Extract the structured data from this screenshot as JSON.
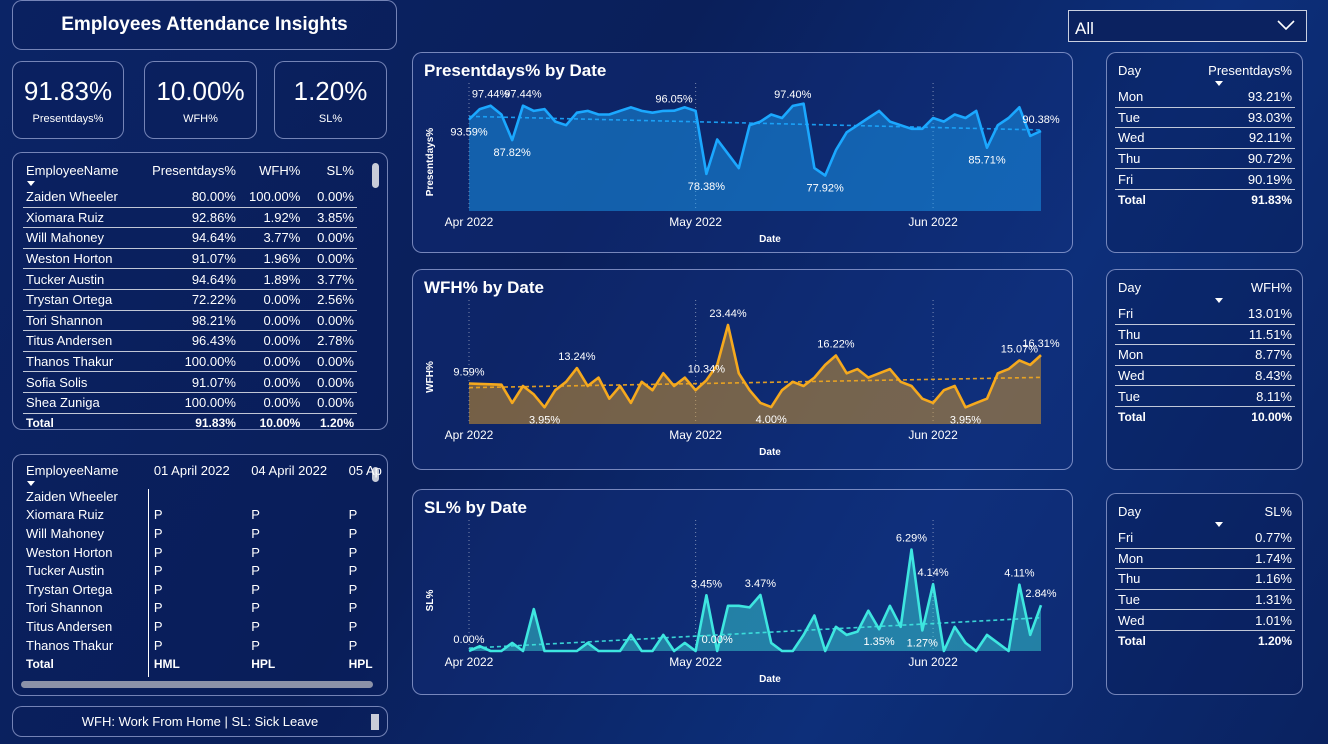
{
  "header": {
    "title": "Employees Attendance Insights"
  },
  "slicer": {
    "value": "All"
  },
  "kpis": [
    {
      "value": "91.83%",
      "label": "Presentdays%"
    },
    {
      "value": "10.00%",
      "label": "WFH%"
    },
    {
      "value": "1.20%",
      "label": "SL%"
    }
  ],
  "employee_table": {
    "columns": [
      "EmployeeName",
      "Presentdays%",
      "WFH%",
      "SL%"
    ],
    "rows": [
      [
        "Zaiden Wheeler",
        "80.00%",
        "100.00%",
        "0.00%"
      ],
      [
        "Xiomara Ruiz",
        "92.86%",
        "1.92%",
        "3.85%"
      ],
      [
        "Will Mahoney",
        "94.64%",
        "3.77%",
        "0.00%"
      ],
      [
        "Weston Horton",
        "91.07%",
        "1.96%",
        "0.00%"
      ],
      [
        "Tucker Austin",
        "94.64%",
        "1.89%",
        "3.77%"
      ],
      [
        "Trystan Ortega",
        "72.22%",
        "0.00%",
        "2.56%"
      ],
      [
        "Tori Shannon",
        "98.21%",
        "0.00%",
        "0.00%"
      ],
      [
        "Titus Andersen",
        "96.43%",
        "0.00%",
        "2.78%"
      ],
      [
        "Thanos Thakur",
        "100.00%",
        "0.00%",
        "0.00%"
      ],
      [
        "Sofia Solis",
        "91.07%",
        "0.00%",
        "0.00%"
      ],
      [
        "Shea Zuniga",
        "100.00%",
        "0.00%",
        "0.00%"
      ]
    ],
    "total": [
      "Total",
      "91.83%",
      "10.00%",
      "1.20%"
    ]
  },
  "attendance_matrix": {
    "columns": [
      "EmployeeName",
      "01 April 2022",
      "04 April 2022",
      "05 Ap"
    ],
    "rows": [
      [
        "Zaiden Wheeler"
      ],
      [
        "Xiomara Ruiz",
        "P",
        "P",
        "P"
      ],
      [
        "Will Mahoney",
        "P",
        "P",
        "P"
      ],
      [
        "Weston Horton",
        "P",
        "P",
        "P"
      ],
      [
        "Tucker Austin",
        "P",
        "P",
        "P"
      ],
      [
        "Trystan Ortega",
        "P",
        "P",
        "P"
      ],
      [
        "Tori Shannon",
        "P",
        "P",
        "P"
      ],
      [
        "Titus Andersen",
        "P",
        "P",
        "P"
      ],
      [
        "Thanos Thakur",
        "P",
        "P",
        "P"
      ]
    ],
    "total": [
      "Total",
      "HML",
      "HPL",
      "HPL"
    ]
  },
  "day_tables": [
    {
      "columns": [
        "Day",
        "Presentdays%"
      ],
      "rows": [
        [
          "Mon",
          "93.21%"
        ],
        [
          "Tue",
          "93.03%"
        ],
        [
          "Wed",
          "92.11%"
        ],
        [
          "Thu",
          "90.72%"
        ],
        [
          "Fri",
          "90.19%"
        ]
      ],
      "total": [
        "Total",
        "91.83%"
      ]
    },
    {
      "columns": [
        "Day",
        "WFH%"
      ],
      "rows": [
        [
          "Fri",
          "13.01%"
        ],
        [
          "Thu",
          "11.51%"
        ],
        [
          "Mon",
          "8.77%"
        ],
        [
          "Wed",
          "8.43%"
        ],
        [
          "Tue",
          "8.11%"
        ]
      ],
      "total": [
        "Total",
        "10.00%"
      ]
    },
    {
      "columns": [
        "Day",
        "SL%"
      ],
      "rows": [
        [
          "Fri",
          "0.77%"
        ],
        [
          "Mon",
          "1.74%"
        ],
        [
          "Thu",
          "1.16%"
        ],
        [
          "Tue",
          "1.31%"
        ],
        [
          "Wed",
          "1.01%"
        ]
      ],
      "total": [
        "Total",
        "1.20%"
      ]
    }
  ],
  "footnote": "WFH: Work From Home | SL: Sick Leave",
  "chart_data": [
    {
      "type": "area",
      "title": "Presentdays% by Date",
      "x_label": "Date",
      "y_label": "Presentdays%",
      "color": "#1ba8ff",
      "ylim": [
        68,
        101
      ],
      "trendline": true,
      "categories": [
        "Apr 2022",
        null,
        null,
        null,
        null,
        null,
        null,
        null,
        null,
        null,
        null,
        null,
        null,
        null,
        null,
        null,
        null,
        null,
        null,
        null,
        null,
        "May 2022",
        null,
        null,
        null,
        null,
        null,
        null,
        null,
        null,
        null,
        null,
        null,
        null,
        null,
        null,
        null,
        null,
        null,
        null,
        null,
        null,
        null,
        "Jun 2022",
        null,
        null,
        null,
        null,
        null,
        null,
        null,
        null,
        null,
        null
      ],
      "values": [
        93.59,
        96.5,
        97.44,
        95,
        87.82,
        97.44,
        96,
        96.5,
        93,
        92,
        95.5,
        96,
        95,
        95,
        96,
        97,
        96,
        95.5,
        96,
        96.05,
        97,
        96,
        78.38,
        88,
        84,
        80,
        92,
        93,
        95,
        94,
        97.4,
        98,
        80,
        77.92,
        85,
        90,
        92,
        94,
        96,
        93,
        92,
        91,
        91,
        94,
        93,
        95,
        94,
        96,
        85.71,
        92,
        94,
        97,
        89,
        90.38
      ],
      "value_labels": [
        "93.59%",
        null,
        "97.44%",
        null,
        "87.82%",
        "97.44%",
        null,
        null,
        null,
        null,
        null,
        null,
        null,
        null,
        null,
        null,
        null,
        null,
        null,
        "96.05%",
        null,
        null,
        "78.38%",
        null,
        null,
        null,
        null,
        null,
        null,
        null,
        "97.40%",
        null,
        null,
        "77.92%",
        null,
        null,
        null,
        null,
        null,
        null,
        null,
        null,
        null,
        null,
        null,
        null,
        null,
        null,
        "85.71%",
        null,
        null,
        null,
        null,
        "90.38%"
      ]
    },
    {
      "type": "area",
      "title": "WFH% by Date",
      "x_label": "Date",
      "y_label": "WFH%",
      "color": "#f5a91e",
      "ylim": [
        0,
        27
      ],
      "trendline": true,
      "categories": [
        "Apr 2022",
        null,
        null,
        null,
        null,
        null,
        null,
        null,
        null,
        null,
        null,
        null,
        null,
        null,
        null,
        null,
        null,
        null,
        null,
        null,
        null,
        "May 2022",
        null,
        null,
        null,
        null,
        null,
        null,
        null,
        null,
        null,
        null,
        null,
        null,
        null,
        null,
        null,
        null,
        null,
        null,
        null,
        null,
        null,
        "Jun 2022",
        null,
        null,
        null,
        null,
        null,
        null,
        null,
        null,
        null,
        null
      ],
      "values": [
        9.59,
        9.5,
        9.4,
        9.3,
        5,
        9,
        7,
        3.95,
        8,
        10,
        13.24,
        9,
        11,
        6,
        9,
        5,
        10,
        8,
        12,
        9,
        11,
        8,
        10.34,
        14,
        23.44,
        12,
        8,
        5,
        4,
        8,
        10,
        9,
        11,
        14,
        16.22,
        12,
        13,
        11,
        12,
        13,
        10,
        9,
        6,
        5,
        8,
        9,
        3.95,
        5,
        6,
        12,
        13,
        15.07,
        14,
        16.31
      ],
      "value_labels": [
        "9.59%",
        null,
        null,
        null,
        null,
        null,
        null,
        "3.95%",
        null,
        null,
        "13.24%",
        null,
        null,
        null,
        null,
        null,
        null,
        null,
        null,
        null,
        null,
        null,
        "10.34%",
        null,
        "23.44%",
        null,
        null,
        null,
        "4.00%",
        null,
        null,
        null,
        null,
        null,
        "16.22%",
        null,
        null,
        null,
        null,
        null,
        null,
        null,
        null,
        null,
        null,
        null,
        "3.95%",
        null,
        null,
        null,
        null,
        "15.07%",
        null,
        "16.31%"
      ]
    },
    {
      "type": "area",
      "title": "SL% by Date",
      "x_label": "Date",
      "y_label": "SL%",
      "color": "#3ee6e0",
      "ylim": [
        0,
        7.5
      ],
      "trendline": true,
      "categories": [
        "Apr 2022",
        null,
        null,
        null,
        null,
        null,
        null,
        null,
        null,
        null,
        null,
        null,
        null,
        null,
        null,
        null,
        null,
        null,
        null,
        null,
        null,
        "May 2022",
        null,
        null,
        null,
        null,
        null,
        null,
        null,
        null,
        null,
        null,
        null,
        null,
        null,
        null,
        null,
        null,
        null,
        null,
        null,
        null,
        null,
        "Jun 2022",
        null,
        null,
        null,
        null,
        null,
        null,
        null,
        null,
        null,
        null
      ],
      "values": [
        0,
        0.3,
        0,
        0,
        0.5,
        0,
        2.6,
        0,
        0,
        0,
        0,
        0.5,
        0,
        0,
        0,
        1,
        0,
        0,
        1,
        0,
        0.5,
        0,
        3.45,
        0,
        2.8,
        2.8,
        2.7,
        3.47,
        0.5,
        0,
        0,
        1,
        2.2,
        0,
        1.5,
        1,
        1.2,
        2.5,
        1.35,
        2.8,
        1.5,
        6.29,
        1.27,
        4.14,
        0,
        1.5,
        0.5,
        0,
        1,
        0.5,
        0,
        4.11,
        1,
        2.84
      ],
      "value_labels": [
        "0.00%",
        null,
        null,
        null,
        null,
        null,
        null,
        null,
        null,
        null,
        null,
        null,
        null,
        null,
        null,
        null,
        null,
        null,
        null,
        null,
        null,
        null,
        "3.45%",
        "0.00%",
        null,
        null,
        null,
        "3.47%",
        null,
        null,
        null,
        null,
        null,
        null,
        null,
        null,
        null,
        null,
        "1.35%",
        null,
        null,
        "6.29%",
        "1.27%",
        "4.14%",
        null,
        null,
        null,
        null,
        null,
        null,
        null,
        "4.11%",
        null,
        "2.84%"
      ]
    }
  ]
}
